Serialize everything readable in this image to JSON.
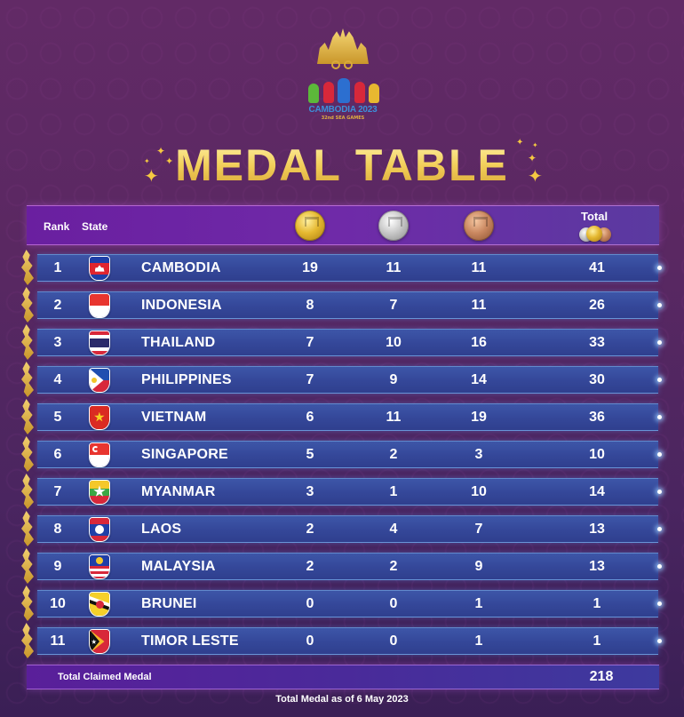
{
  "logo": {
    "caption": "CAMBODIA 2023",
    "subcaption": "32nd SEA GAMES"
  },
  "title": "MEDAL TABLE",
  "header": {
    "rank": "Rank",
    "state": "State",
    "gold_icon": "gold-medal-icon",
    "silver_icon": "silver-medal-icon",
    "bronze_icon": "bronze-medal-icon",
    "total": "Total"
  },
  "colors": {
    "background": "#5a2862",
    "row": "#3a50a2",
    "header_bar": "#6a22a2",
    "title_gold": "#f2cf5a"
  },
  "rows": [
    {
      "rank": "1",
      "state": "CAMBODIA",
      "flag": "cambodia-flag",
      "gold": "19",
      "silver": "11",
      "bronze": "11",
      "total": "41"
    },
    {
      "rank": "2",
      "state": "INDONESIA",
      "flag": "indonesia-flag",
      "gold": "8",
      "silver": "7",
      "bronze": "11",
      "total": "26"
    },
    {
      "rank": "3",
      "state": "THAILAND",
      "flag": "thailand-flag",
      "gold": "7",
      "silver": "10",
      "bronze": "16",
      "total": "33"
    },
    {
      "rank": "4",
      "state": "PHILIPPINES",
      "flag": "philippines-flag",
      "gold": "7",
      "silver": "9",
      "bronze": "14",
      "total": "30"
    },
    {
      "rank": "5",
      "state": "VIETNAM",
      "flag": "vietnam-flag",
      "gold": "6",
      "silver": "11",
      "bronze": "19",
      "total": "36"
    },
    {
      "rank": "6",
      "state": "SINGAPORE",
      "flag": "singapore-flag",
      "gold": "5",
      "silver": "2",
      "bronze": "3",
      "total": "10"
    },
    {
      "rank": "7",
      "state": "MYANMAR",
      "flag": "myanmar-flag",
      "gold": "3",
      "silver": "1",
      "bronze": "10",
      "total": "14"
    },
    {
      "rank": "8",
      "state": "LAOS",
      "flag": "laos-flag",
      "gold": "2",
      "silver": "4",
      "bronze": "7",
      "total": "13"
    },
    {
      "rank": "9",
      "state": "MALAYSIA",
      "flag": "malaysia-flag",
      "gold": "2",
      "silver": "2",
      "bronze": "9",
      "total": "13"
    },
    {
      "rank": "10",
      "state": "BRUNEI",
      "flag": "brunei-flag",
      "gold": "0",
      "silver": "0",
      "bronze": "1",
      "total": "1"
    },
    {
      "rank": "11",
      "state": "TIMOR LESTE",
      "flag": "timor-leste-flag",
      "gold": "0",
      "silver": "0",
      "bronze": "1",
      "total": "1"
    }
  ],
  "total_claimed": {
    "label": "Total Claimed Medal",
    "value": "218"
  },
  "footer": "Total Medal as of 6 May 2023"
}
